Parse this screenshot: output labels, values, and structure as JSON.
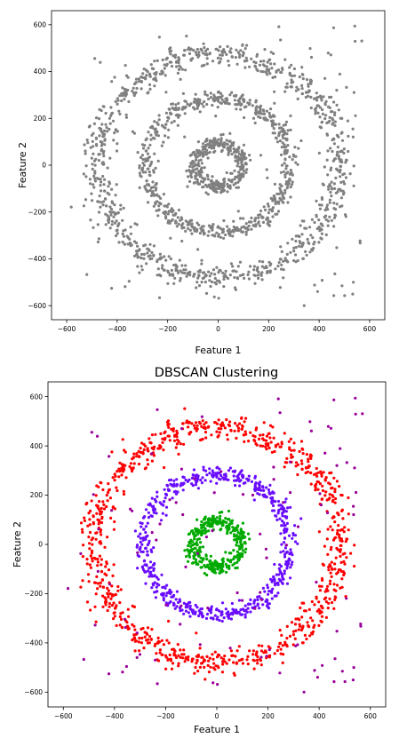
{
  "chart_data": [
    {
      "type": "scatter",
      "title": "",
      "xlabel": "Feature 1",
      "ylabel": "Feature 2",
      "xlim": [
        -660,
        660
      ],
      "ylim": [
        -660,
        660
      ],
      "xticks": [
        -600,
        -400,
        -200,
        0,
        200,
        400,
        600
      ],
      "yticks": [
        -600,
        -400,
        -200,
        0,
        200,
        400,
        600
      ],
      "grid": false,
      "series": [
        {
          "color": "#808080",
          "structure": "concentric rings at radius ~100, ~280, ~480 plus uniform noise",
          "approx_points": 1950
        }
      ]
    },
    {
      "type": "scatter",
      "title": "DBSCAN Clustering",
      "xlabel": "Feature 1",
      "ylabel": "Feature 2",
      "xlim": [
        -660,
        660
      ],
      "ylim": [
        -660,
        660
      ],
      "xticks": [
        -600,
        -400,
        -200,
        0,
        200,
        400,
        600
      ],
      "yticks": [
        -600,
        -400,
        -200,
        0,
        200,
        400,
        600
      ],
      "grid": false,
      "series": [
        {
          "color": "#ff0000",
          "cluster": "outer ring",
          "radius_center": 480,
          "radius_spread": 55,
          "approx_points": 900
        },
        {
          "color": "#6a0dff",
          "cluster": "middle ring",
          "radius_center": 285,
          "radius_spread": 35,
          "approx_points": 600
        },
        {
          "color": "#00aa00",
          "cluster": "inner ring",
          "radius_center": 95,
          "radius_spread": 30,
          "approx_points": 350
        },
        {
          "color": "#990099",
          "cluster": "noise",
          "approx_points": 110
        }
      ]
    }
  ]
}
